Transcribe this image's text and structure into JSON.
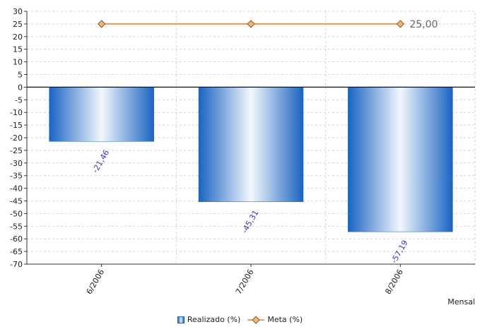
{
  "chart_data": {
    "type": "bar",
    "categories": [
      "6/2006",
      "7/2006",
      "8/2006"
    ],
    "series": [
      {
        "name": "Realizado (%)",
        "type": "bar",
        "values": [
          -21.46,
          -45.31,
          -57.19
        ],
        "data_labels": [
          "-21,46",
          "-45,31",
          "-57,19"
        ]
      },
      {
        "name": "Meta (%)",
        "type": "line",
        "values": [
          25,
          25,
          25
        ],
        "data_labels": [
          "",
          "",
          "25,00"
        ]
      }
    ],
    "xlabel": "Mensal",
    "ylim": [
      -70,
      30
    ],
    "y_ticks": [
      "30",
      "25",
      "20",
      "15",
      "10",
      "5",
      "0",
      "-5",
      "-10",
      "-15",
      "-20",
      "-25",
      "-30",
      "-35",
      "-40",
      "-45",
      "-50",
      "-55",
      "-60",
      "-65",
      "-70"
    ],
    "grid": true,
    "legend_position": "bottom",
    "colors": {
      "bar": "#1f6ccc",
      "bar_highlight": "#ffffff",
      "line": "#e8a060",
      "marker": "#f2b37a",
      "marker_stroke": "#8a5a2e"
    }
  }
}
